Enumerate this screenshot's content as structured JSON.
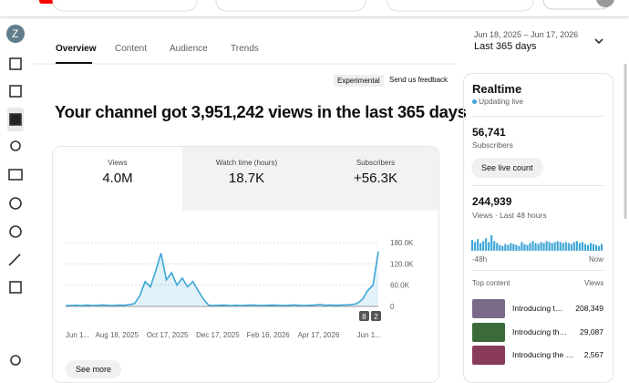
{
  "nav": {
    "avatar": "Z"
  },
  "tabs": [
    "Overview",
    "Content",
    "Audience",
    "Trends"
  ],
  "date_range": {
    "range": "Jun 18, 2025 – Jun 17, 2026",
    "label": "Last 365 days"
  },
  "badges": {
    "experimental": "Experimental",
    "feedback": "Send us feedback"
  },
  "headline": "Your channel got 3,951,242 views in the last 365 days",
  "metrics": [
    {
      "label": "Views",
      "value": "4.0M"
    },
    {
      "label": "Watch time (hours)",
      "value": "18.7K"
    },
    {
      "label": "Subscribers",
      "value": "+56.3K"
    }
  ],
  "chart_data": {
    "type": "line",
    "color": "#3ea6d6",
    "ylim": [
      0,
      180000
    ],
    "yticks": [
      {
        "value": 180000,
        "label": "180.0K"
      },
      {
        "value": 120000,
        "label": "120.0K"
      },
      {
        "value": 60000,
        "label": "60.0K"
      },
      0
    ],
    "xticks": [
      "Jun 1...",
      "Aug 18, 2025",
      "Oct 17, 2025",
      "Dec 17, 2025",
      "Feb 16, 2026",
      "Apr 17, 2026",
      "Jun 1..."
    ],
    "values": [
      2000,
      2500,
      3000,
      2000,
      3500,
      2500,
      3000,
      4000,
      3000,
      2500,
      3500,
      3000,
      5000,
      8000,
      30000,
      70000,
      55000,
      100000,
      150000,
      75000,
      95000,
      60000,
      80000,
      55000,
      70000,
      45000,
      20000,
      3000,
      2500,
      3000,
      3500,
      2000,
      3000,
      2500,
      3000,
      4000,
      3000,
      2500,
      3000,
      3500,
      3000,
      2500,
      3000,
      4000,
      3000,
      2500,
      3000,
      3500,
      5000,
      3000,
      4000,
      3000,
      3500,
      4000,
      5000,
      8000,
      20000,
      45000,
      60000,
      155000
    ],
    "markers": [
      "8",
      "2"
    ],
    "grid": true
  },
  "see_more": "See more",
  "realtime": {
    "title": "Realtime",
    "status": "Updating live",
    "subscribers": "56,741",
    "subscribers_label": "Subscribers",
    "button": "See live count",
    "views": "244,939",
    "views_label": "Views · Last 48 hours",
    "chart": {
      "type": "bar",
      "color": "#3ea6d6",
      "values": [
        11,
        9,
        12,
        8,
        10,
        13,
        9,
        16,
        10,
        8,
        6,
        5,
        7,
        6,
        8,
        7,
        6,
        5,
        9,
        7,
        6,
        8,
        10,
        8,
        7,
        9,
        8,
        10,
        9,
        8,
        9,
        10,
        9,
        8,
        9,
        8,
        7,
        9,
        10,
        8,
        9,
        7,
        6,
        8,
        7,
        6,
        5,
        7
      ],
      "start_label": "-48h",
      "end_label": "Now"
    },
    "top_content_label": "Top content",
    "views_column": "Views",
    "top_content": [
      {
        "title": "Introducing t…",
        "views": "208,349"
      },
      {
        "title": "Introducing th…",
        "views": "29,087"
      },
      {
        "title": "Introducing the …",
        "views": "2,567"
      }
    ]
  }
}
